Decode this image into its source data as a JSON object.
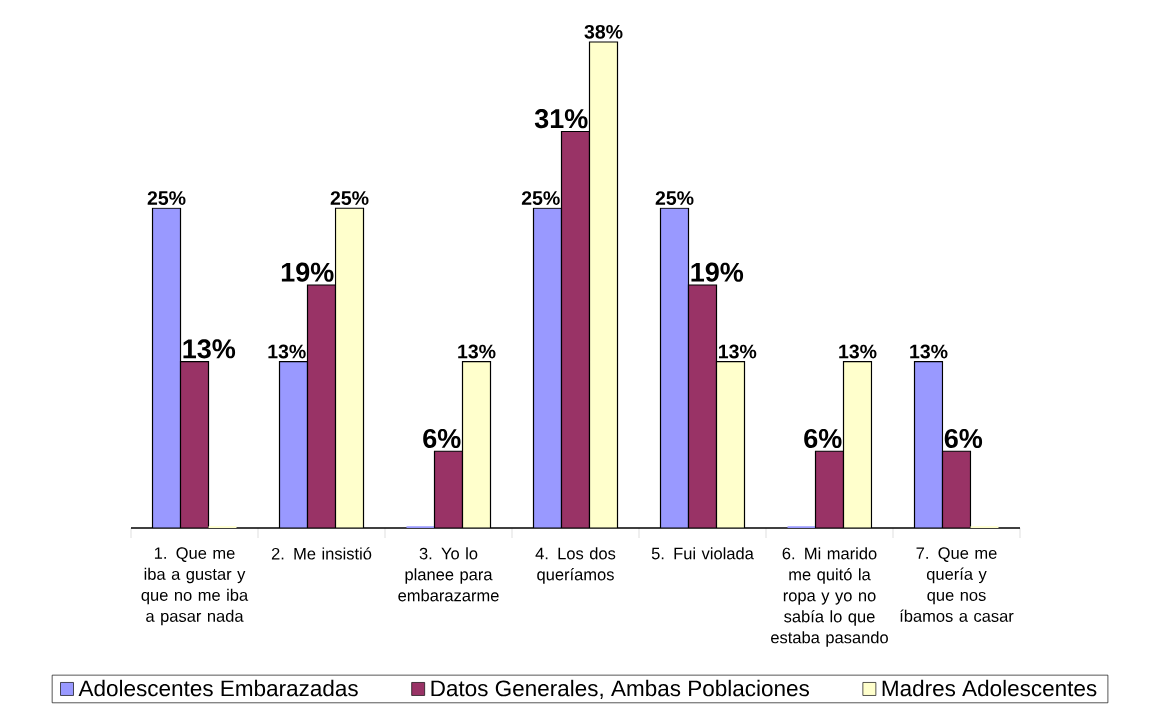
{
  "chart_data": {
    "type": "bar",
    "categories": [
      "1. Que me iba a gustar y que no me iba a pasar nada",
      "2. Me insistió",
      "3. Yo lo planee para embarazarme",
      "4. Los dos queríamos",
      "5. Fui violada",
      "6. Mi marido me quitó la ropa y yo no sabía lo que estaba pasando",
      "7. Que me quería y que nos íbamos a casar"
    ],
    "series": [
      {
        "name": "Adolescentes Embarazadas",
        "color": "#9999ff",
        "values": [
          25,
          13,
          0,
          25,
          25,
          0,
          13
        ],
        "value_labels": [
          "25%",
          "13%",
          null,
          "25%",
          "25%",
          null,
          "13%"
        ]
      },
      {
        "name": "Datos Generales, Ambas Poblaciones",
        "color": "#993366",
        "values": [
          13,
          19,
          6,
          31,
          19,
          6,
          6
        ],
        "value_labels": [
          "13%",
          "19%",
          "6%",
          "31%",
          "19%",
          "6%",
          "6%"
        ]
      },
      {
        "name": "Madres Adolescentes",
        "color": "#ffffcc",
        "values": [
          0,
          25,
          13,
          38,
          13,
          13,
          0
        ],
        "value_labels": [
          null,
          "25%",
          "13%",
          "38%",
          "13%",
          "13%",
          null
        ]
      }
    ],
    "legend": "bottom",
    "tick_labels": "x"
  }
}
